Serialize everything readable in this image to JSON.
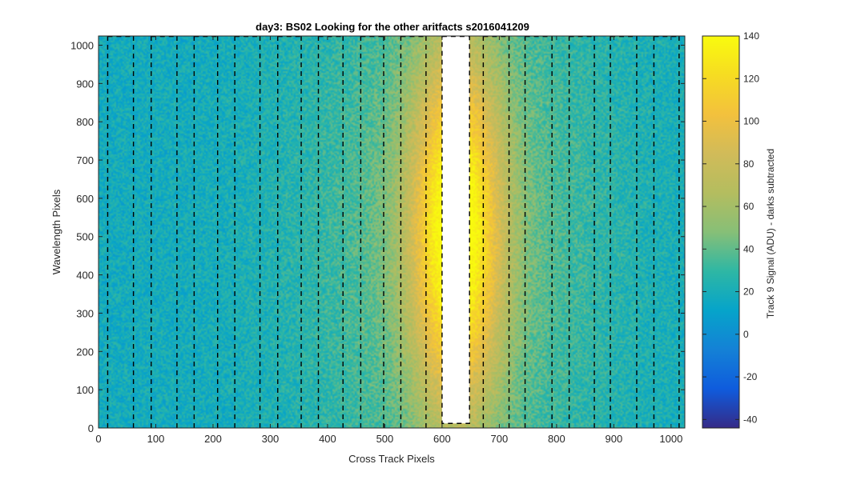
{
  "chart_data": {
    "type": "heatmap",
    "title": "day3: BS02  Looking for the other aritfacts  s2016041209",
    "xlabel": "Cross Track Pixels",
    "ylabel": "Wavelength Pixels",
    "colorbar_label": "Track 9 Signal (ADU) - darks subtracted",
    "xlim": [
      0,
      1024
    ],
    "ylim": [
      0,
      1024
    ],
    "clim": [
      -44,
      140
    ],
    "xticks": [
      0,
      100,
      200,
      300,
      400,
      500,
      600,
      700,
      800,
      900,
      1000
    ],
    "yticks": [
      0,
      100,
      200,
      300,
      400,
      500,
      600,
      700,
      800,
      900,
      1000
    ],
    "cticks": [
      -40,
      -20,
      0,
      20,
      40,
      60,
      80,
      100,
      120,
      140
    ],
    "colormap": "parula",
    "saturated_region": {
      "x": [
        600,
        648
      ],
      "y": [
        12,
        1024
      ],
      "color": "#ffffff"
    },
    "dashed_box": {
      "x": [
        600,
        648
      ],
      "y": [
        12,
        1024
      ]
    },
    "dashed_lines_x": [
      16,
      61,
      92,
      137,
      167,
      208,
      238,
      282,
      313,
      354,
      384,
      427,
      458,
      498,
      528,
      572,
      672,
      717,
      745,
      792,
      822,
      866,
      894,
      940,
      970,
      1014
    ],
    "top_dashes": [
      [
        16,
        61
      ],
      [
        92,
        137
      ],
      [
        167,
        208
      ],
      [
        238,
        282
      ],
      [
        313,
        354
      ],
      [
        384,
        427
      ],
      [
        458,
        498
      ],
      [
        528,
        572
      ],
      [
        672,
        717
      ],
      [
        745,
        792
      ],
      [
        822,
        866
      ],
      [
        894,
        940
      ],
      [
        970,
        1014
      ]
    ],
    "field": {
      "background": 18,
      "peak_center_x": 625,
      "peak_center_y": 510,
      "peak_amplitude": 112,
      "peak_width_x": 55,
      "peak_width_y": 330,
      "halo_amplitude": 28,
      "halo_width_x": 180,
      "halo_width_y": 600
    }
  }
}
